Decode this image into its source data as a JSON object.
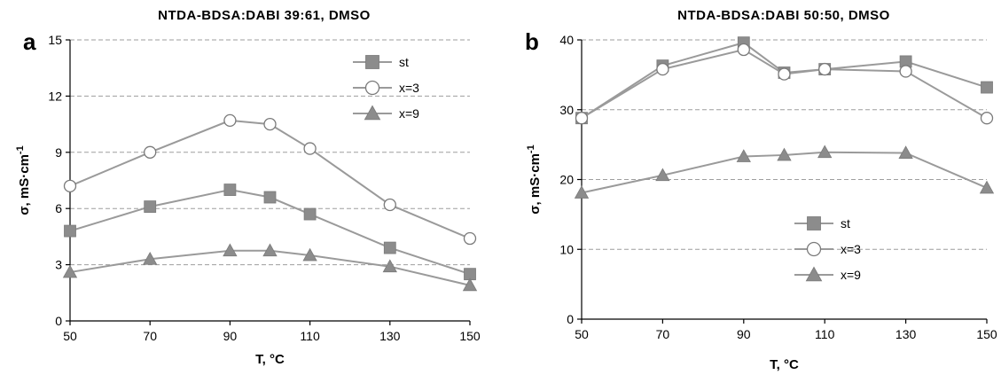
{
  "chart_data": [
    {
      "panel_label": "a",
      "type": "line",
      "title": "NTDA-BDSA:DABI 39:61, DMSO",
      "xlabel": "T, °C",
      "ylabel": "σ, mS·cm",
      "ylabel_sup": "-1",
      "xlim": [
        50,
        150
      ],
      "ylim": [
        0,
        15
      ],
      "xticks": [
        50,
        70,
        90,
        110,
        130,
        150
      ],
      "yticks": [
        0,
        3,
        6,
        9,
        12,
        15
      ],
      "grid": "horizontal dashed",
      "legend_position": "top-right",
      "x": [
        50,
        70,
        90,
        100,
        110,
        130,
        150
      ],
      "series": [
        {
          "name": "st",
          "marker": "square",
          "values": [
            4.8,
            6.1,
            7.0,
            6.6,
            5.7,
            3.9,
            2.5
          ]
        },
        {
          "name": "x=3",
          "marker": "circle",
          "values": [
            7.2,
            9.0,
            10.7,
            10.5,
            9.2,
            6.2,
            4.4
          ]
        },
        {
          "name": "x=9",
          "marker": "triangle",
          "values": [
            2.6,
            3.3,
            3.75,
            3.75,
            3.5,
            2.9,
            1.9
          ]
        }
      ]
    },
    {
      "panel_label": "b",
      "type": "line",
      "title": "NTDA-BDSA:DABI 50:50, DMSO",
      "xlabel": "T, °C",
      "ylabel": "σ, mS·cm",
      "ylabel_sup": "-1",
      "xlim": [
        50,
        150
      ],
      "ylim": [
        0,
        40
      ],
      "xticks": [
        50,
        70,
        90,
        110,
        130,
        150
      ],
      "yticks": [
        0,
        10,
        20,
        30,
        40
      ],
      "grid": "horizontal dashed",
      "legend_position": "center-right",
      "x": [
        50,
        70,
        90,
        100,
        110,
        130,
        150
      ],
      "series": [
        {
          "name": "st",
          "marker": "square",
          "values": [
            28.8,
            36.3,
            39.6,
            35.3,
            35.8,
            36.9,
            33.2
          ]
        },
        {
          "name": "x=3",
          "marker": "circle",
          "values": [
            28.8,
            35.8,
            38.6,
            35.1,
            35.8,
            35.5,
            28.8
          ]
        },
        {
          "name": "x=9",
          "marker": "triangle",
          "values": [
            18.1,
            20.6,
            23.3,
            23.5,
            23.9,
            23.8,
            18.8
          ]
        }
      ]
    }
  ],
  "colors": {
    "series_line": "#9a9a9a",
    "marker_fill": "#8c8c8c",
    "grid": "#9e9e9e",
    "axis": "#000000"
  }
}
